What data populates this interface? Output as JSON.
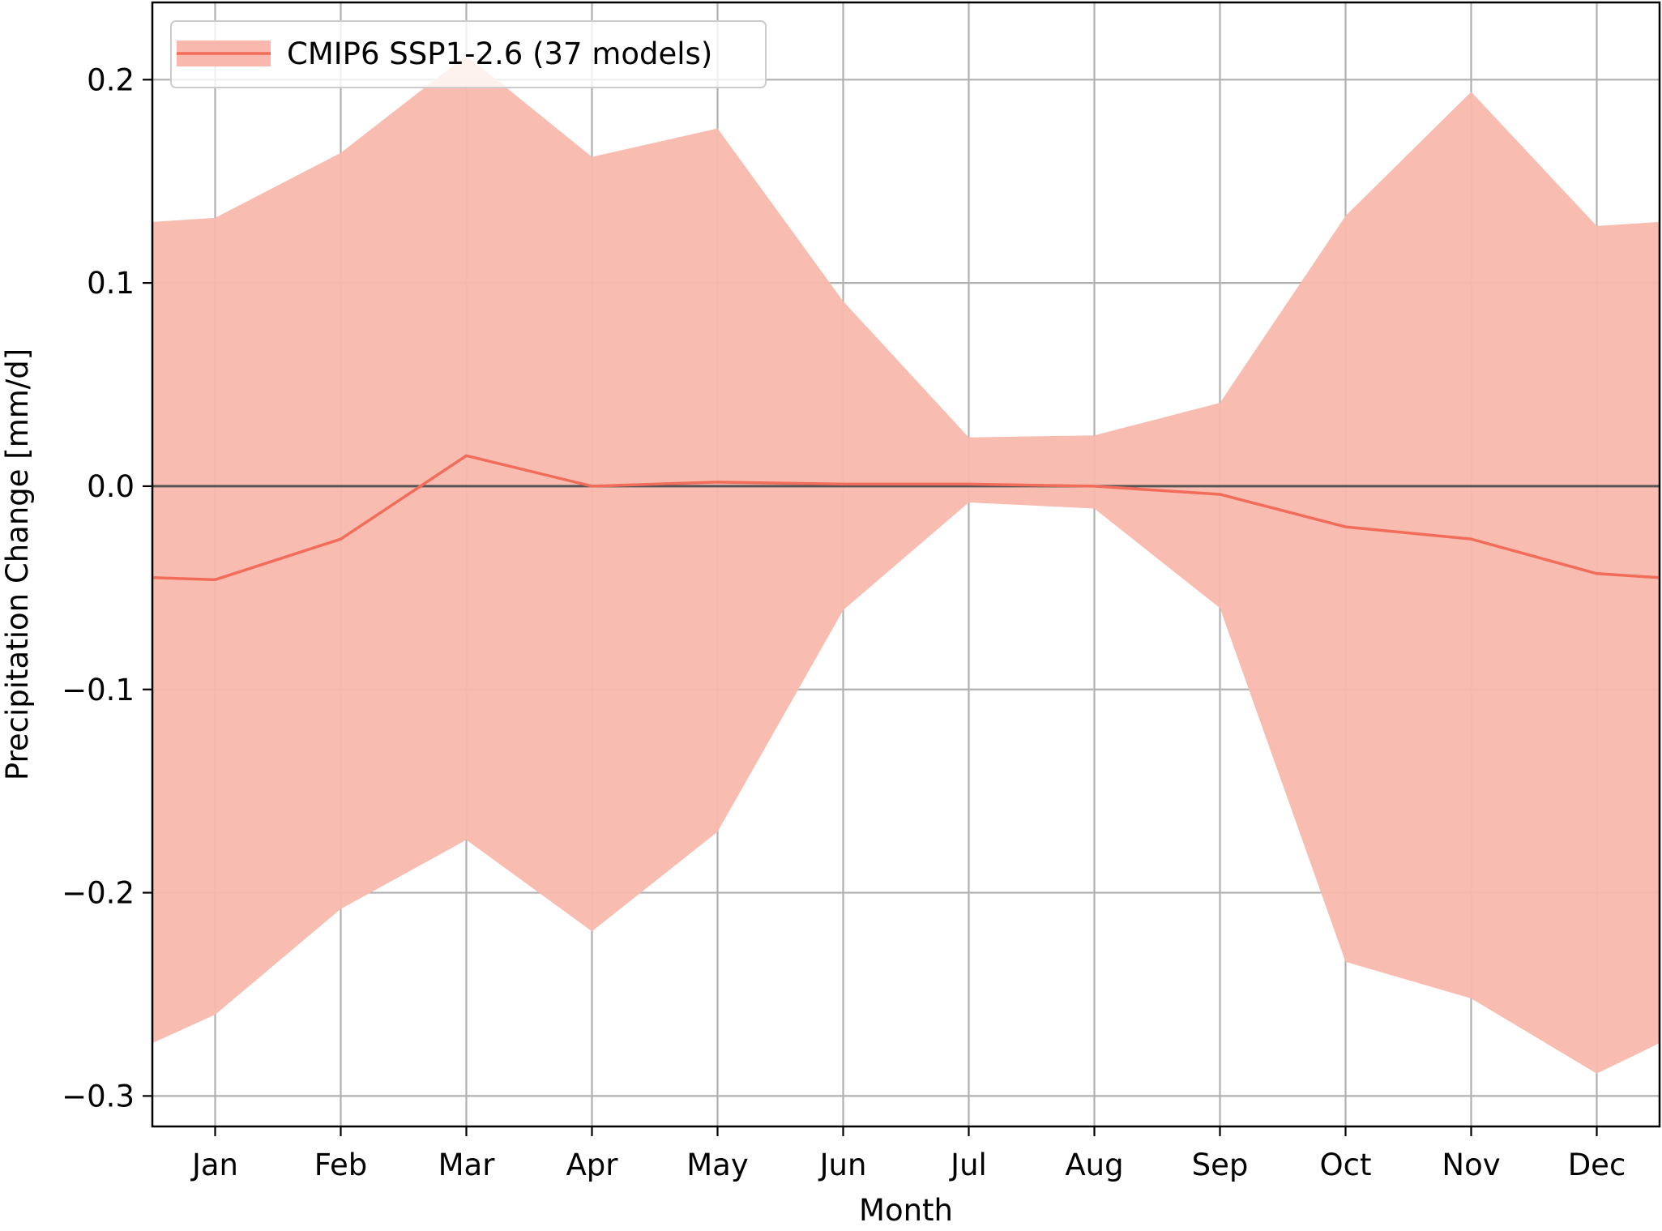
{
  "chart_data": {
    "type": "line",
    "title": "",
    "xlabel": "Month",
    "ylabel": "Precipitation Change [mm/d]",
    "categories": [
      "Jan",
      "Feb",
      "Mar",
      "Apr",
      "May",
      "Jun",
      "Jul",
      "Aug",
      "Sep",
      "Oct",
      "Nov",
      "Dec"
    ],
    "xlim": [
      0.5,
      12.5
    ],
    "ylim": [
      -0.315,
      0.238
    ],
    "yticks": [
      0.2,
      0.1,
      0.0,
      -0.1,
      -0.2,
      -0.3
    ],
    "ytick_labels": [
      "0.2",
      "0.1",
      "0.0",
      "−0.1",
      "−0.2",
      "−0.3"
    ],
    "grid": true,
    "zero_line": true,
    "legend_position": "top-left",
    "colors": {
      "line": "#f26c5a",
      "band": "#f8b8ad",
      "grid": "#b0b0b0",
      "zero_line": "#555555"
    },
    "series": [
      {
        "name": "CMIP6 SSP1-2.6 (37 models)",
        "values": [
          -0.046,
          -0.026,
          0.015,
          0.0,
          0.002,
          0.001,
          0.001,
          0.0,
          -0.004,
          -0.02,
          -0.026,
          -0.043
        ],
        "band_upper": [
          0.132,
          0.164,
          0.212,
          0.162,
          0.176,
          0.091,
          0.024,
          0.025,
          0.041,
          0.133,
          0.194,
          0.128
        ],
        "band_lower": [
          -0.26,
          -0.208,
          -0.174,
          -0.219,
          -0.17,
          -0.061,
          -0.008,
          -0.011,
          -0.06,
          -0.234,
          -0.252,
          -0.289
        ],
        "edge_left": {
          "value": -0.045,
          "upper": 0.13,
          "lower": -0.274
        },
        "edge_right": {
          "value": -0.045,
          "upper": 0.13,
          "lower": -0.274
        }
      }
    ]
  }
}
